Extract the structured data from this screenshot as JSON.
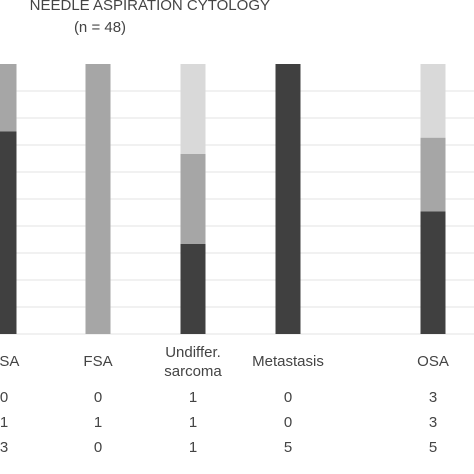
{
  "chart_data": {
    "type": "stacked-bar-table",
    "title": "NEEDLE ASPIRATION CYTOLOGY",
    "subtitle": "(n = 48)",
    "categories": [
      "CSA",
      "FSA",
      [
        "Undiffer.",
        "sarcoma"
      ],
      "Metastasis",
      "OSA"
    ],
    "series": [
      {
        "color": "#d9d9d9",
        "values": [
          0,
          0,
          1,
          0,
          3
        ]
      },
      {
        "color": "#a6a6a6",
        "values": [
          1,
          1,
          1,
          0,
          3
        ]
      },
      {
        "color": "#404040",
        "values": [
          3,
          0,
          1,
          5,
          5
        ]
      }
    ],
    "grid": true
  }
}
